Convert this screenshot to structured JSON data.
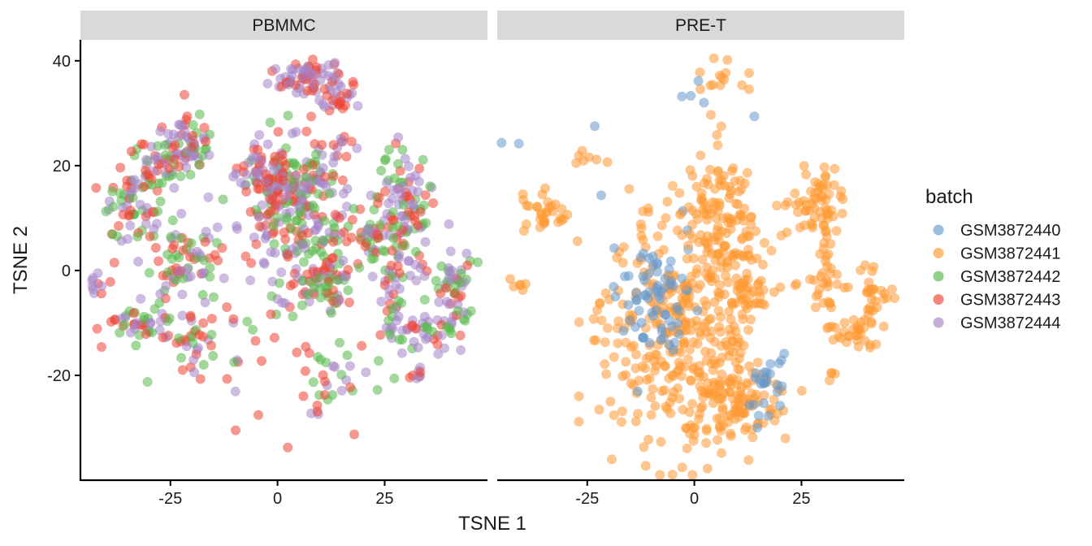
{
  "chart_data": {
    "type": "scatter",
    "xlabel": "TSNE 1",
    "ylabel": "TSNE 2",
    "xlim": [
      -46,
      49
    ],
    "ylim": [
      -40,
      44
    ],
    "x_ticks": [
      -25,
      0,
      25
    ],
    "x_tick_labels": [
      "-25",
      "0",
      "25"
    ],
    "y_ticks": [
      -20,
      0,
      20,
      40
    ],
    "y_tick_labels": [
      "-20",
      "0",
      "20",
      "40"
    ],
    "grid": false,
    "legend_position": "right",
    "legend_title": "batch",
    "series": [
      {
        "name": "GSM3872440",
        "color": "#6699CC"
      },
      {
        "name": "GSM3872441",
        "color": "#FF9933"
      },
      {
        "name": "GSM3872442",
        "color": "#55B848"
      },
      {
        "name": "GSM3872443",
        "color": "#EE4433"
      },
      {
        "name": "GSM3872444",
        "color": "#A484C8"
      }
    ],
    "panels": [
      {
        "label": "PBMMC",
        "clusters": [
          {
            "series": [
              "GSM3872443",
              "GSM3872444"
            ],
            "x": 7,
            "y": 37,
            "sx": 5,
            "sy": 1.8,
            "n": 70
          },
          {
            "series": [
              "GSM3872443",
              "GSM3872444"
            ],
            "x": 14,
            "y": 32,
            "sx": 2,
            "sy": 1.2,
            "n": 22
          },
          {
            "series": [
              "GSM3872442",
              "GSM3872443",
              "GSM3872444"
            ],
            "x": -21,
            "y": 24,
            "sx": 3.5,
            "sy": 2.5,
            "n": 70
          },
          {
            "series": [
              "GSM3872442",
              "GSM3872443",
              "GSM3872444"
            ],
            "x": -28,
            "y": 19,
            "sx": 3,
            "sy": 2.5,
            "n": 40
          },
          {
            "series": [
              "GSM3872442",
              "GSM3872443",
              "GSM3872444"
            ],
            "x": -34,
            "y": 12,
            "sx": 2.5,
            "sy": 3,
            "n": 55
          },
          {
            "series": [
              "GSM3872442",
              "GSM3872443",
              "GSM3872444"
            ],
            "x": -22,
            "y": 2,
            "sx": 5,
            "sy": 4,
            "n": 70
          },
          {
            "series": [
              "GSM3872442",
              "GSM3872443",
              "GSM3872444"
            ],
            "x": -32,
            "y": -10,
            "sx": 4,
            "sy": 1.8,
            "n": 45
          },
          {
            "series": [
              "GSM3872443",
              "GSM3872444"
            ],
            "x": -41,
            "y": -3,
            "sx": 1.5,
            "sy": 1,
            "n": 10
          },
          {
            "series": [
              "GSM3872442",
              "GSM3872443",
              "GSM3872444"
            ],
            "x": -20,
            "y": -14,
            "sx": 2,
            "sy": 3,
            "n": 25
          },
          {
            "series": [
              "GSM3872442",
              "GSM3872443",
              "GSM3872444"
            ],
            "x": 4,
            "y": 13,
            "sx": 6,
            "sy": 7,
            "n": 240
          },
          {
            "series": [
              "GSM3872443",
              "GSM3872444"
            ],
            "x": -3,
            "y": 18,
            "sx": 3,
            "sy": 3.5,
            "n": 55
          },
          {
            "series": [
              "GSM3872442",
              "GSM3872443",
              "GSM3872444"
            ],
            "x": 10,
            "y": -1,
            "sx": 4,
            "sy": 4,
            "n": 80
          },
          {
            "series": [
              "GSM3872443",
              "GSM3872444"
            ],
            "x": 15,
            "y": 24,
            "sx": 1.5,
            "sy": 1,
            "n": 8
          },
          {
            "series": [
              "GSM3872442",
              "GSM3872443",
              "GSM3872444"
            ],
            "x": 22,
            "y": 6,
            "sx": 1.5,
            "sy": 3,
            "n": 25
          },
          {
            "series": [
              "GSM3872442",
              "GSM3872443",
              "GSM3872444"
            ],
            "x": 29,
            "y": 11,
            "sx": 3.5,
            "sy": 6,
            "n": 110
          },
          {
            "series": [
              "GSM3872442",
              "GSM3872443",
              "GSM3872444"
            ],
            "x": 27,
            "y": -5,
            "sx": 1.5,
            "sy": 6,
            "n": 45
          },
          {
            "series": [
              "GSM3872442",
              "GSM3872443",
              "GSM3872444"
            ],
            "x": 36,
            "y": -11,
            "sx": 4,
            "sy": 2,
            "n": 45
          },
          {
            "series": [
              "GSM3872442",
              "GSM3872443",
              "GSM3872444"
            ],
            "x": 41,
            "y": -3,
            "sx": 2.5,
            "sy": 4,
            "n": 45
          },
          {
            "series": [
              "GSM3872443",
              "GSM3872444"
            ],
            "x": 33,
            "y": -20,
            "sx": 1,
            "sy": 0.8,
            "n": 8
          },
          {
            "series": [
              "GSM3872442",
              "GSM3872443",
              "GSM3872444"
            ],
            "x": 12,
            "y": -22,
            "sx": 5,
            "sy": 4,
            "n": 35
          },
          {
            "series": [
              "GSM3872442",
              "GSM3872443",
              "GSM3872444"
            ],
            "x": -8,
            "y": -10,
            "sx": 10,
            "sy": 9,
            "n": 40
          },
          {
            "series": [
              "GSM3872443"
            ],
            "x": 2,
            "y": -34,
            "sx": 0.5,
            "sy": 0.5,
            "n": 1
          }
        ]
      },
      {
        "label": "PRE-T",
        "clusters": [
          {
            "series": [
              "GSM3872441"
            ],
            "x": -4,
            "y": -12,
            "sx": 9,
            "sy": 11,
            "n": 320
          },
          {
            "series": [
              "GSM3872441"
            ],
            "x": 10,
            "y": -24,
            "sx": 6,
            "sy": 4,
            "n": 110
          },
          {
            "series": [
              "GSM3872440"
            ],
            "x": -9,
            "y": -5,
            "sx": 4,
            "sy": 6,
            "n": 70
          },
          {
            "series": [
              "GSM3872440"
            ],
            "x": 17,
            "y": -22,
            "sx": 3,
            "sy": 3,
            "n": 25
          },
          {
            "series": [
              "GSM3872441"
            ],
            "x": 5,
            "y": 10,
            "sx": 4,
            "sy": 7,
            "n": 120
          },
          {
            "series": [
              "GSM3872441"
            ],
            "x": 13,
            "y": -5,
            "sx": 3,
            "sy": 2,
            "n": 30
          },
          {
            "series": [
              "GSM3872441"
            ],
            "x": 29,
            "y": 12,
            "sx": 3,
            "sy": 4,
            "n": 60
          },
          {
            "series": [
              "GSM3872441"
            ],
            "x": 30,
            "y": -1,
            "sx": 1.5,
            "sy": 4,
            "n": 30
          },
          {
            "series": [
              "GSM3872441"
            ],
            "x": 37,
            "y": -12,
            "sx": 3,
            "sy": 1.5,
            "n": 30
          },
          {
            "series": [
              "GSM3872441"
            ],
            "x": 42,
            "y": -4,
            "sx": 2,
            "sy": 3,
            "n": 30
          },
          {
            "series": [
              "GSM3872441"
            ],
            "x": -35,
            "y": 11,
            "sx": 3,
            "sy": 2,
            "n": 30
          },
          {
            "series": [
              "GSM3872441"
            ],
            "x": -41,
            "y": -3,
            "sx": 1,
            "sy": 1,
            "n": 6
          },
          {
            "series": [
              "GSM3872441"
            ],
            "x": -24,
            "y": 21,
            "sx": 2,
            "sy": 1,
            "n": 7
          },
          {
            "series": [
              "GSM3872441"
            ],
            "x": 6,
            "y": 36,
            "sx": 4,
            "sy": 2.5,
            "n": 14
          },
          {
            "series": [
              "GSM3872440"
            ],
            "x": 5,
            "y": 33,
            "sx": 4,
            "sy": 3,
            "n": 5
          },
          {
            "series": [
              "GSM3872441"
            ],
            "x": 32,
            "y": -20,
            "sx": 1,
            "sy": 0.6,
            "n": 4
          },
          {
            "series": [
              "GSM3872440"
            ],
            "x": -25,
            "y": 10,
            "sx": 7,
            "sy": 12,
            "n": 6
          },
          {
            "series": [
              "GSM3872441"
            ],
            "x": 16,
            "y": 4,
            "sx": 6,
            "sy": 5,
            "n": 20
          }
        ]
      }
    ]
  }
}
